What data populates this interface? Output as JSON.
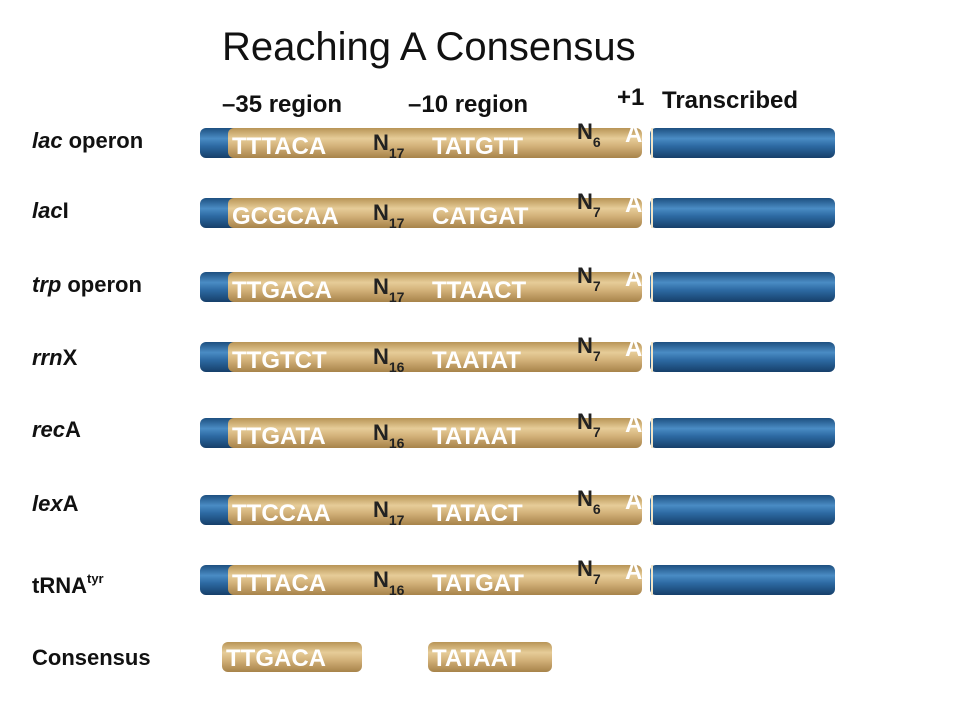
{
  "header": {
    "title": "Reaching A Consensus",
    "region35": "–35 region",
    "region10": "–10 region",
    "plus1": "+1",
    "transcribed": "Transcribed"
  },
  "rows": [
    {
      "gene": {
        "italic": "lac",
        "rest": "operon"
      },
      "box35": "TTTACA",
      "spacer1": {
        "letter": "N",
        "sub": "17"
      },
      "box10": "TATGTT",
      "spacer2": {
        "letter": "N",
        "sub": "6"
      },
      "start": "A"
    },
    {
      "gene": {
        "italic": "lac",
        "rest": "I"
      },
      "box35": "GCGCAA",
      "spacer1": {
        "letter": "N",
        "sub": "17"
      },
      "box10": "CATGAT",
      "spacer2": {
        "letter": "N",
        "sub": "7"
      },
      "start": "A"
    },
    {
      "gene": {
        "italic": "trp",
        "rest": "operon"
      },
      "box35": "TTGACA",
      "spacer1": {
        "letter": "N",
        "sub": "17"
      },
      "box10": "TTAACT",
      "spacer2": {
        "letter": "N",
        "sub": "7"
      },
      "start": "A"
    },
    {
      "gene": {
        "italic": "rrn",
        "rest": "X"
      },
      "box35": "TTGTCT",
      "spacer1": {
        "letter": "N",
        "sub": "16"
      },
      "box10": "TAATAT",
      "spacer2": {
        "letter": "N",
        "sub": "7"
      },
      "start": "A"
    },
    {
      "gene": {
        "italic": "rec",
        "rest": "A"
      },
      "box35": "TTGATA",
      "spacer1": {
        "letter": "N",
        "sub": "16"
      },
      "box10": "TATAAT",
      "spacer2": {
        "letter": "N",
        "sub": "7"
      },
      "start": "A"
    },
    {
      "gene": {
        "italic": "lex",
        "rest": "A"
      },
      "box35": "TTCCAA",
      "spacer1": {
        "letter": "N",
        "sub": "17"
      },
      "box10": "TATACT",
      "spacer2": {
        "letter": "N",
        "sub": "6"
      },
      "start": "A"
    },
    {
      "gene": {
        "text": "tRNA",
        "sup": "tyr"
      },
      "box35": "TTTACA",
      "spacer1": {
        "letter": "N",
        "sub": "16"
      },
      "box10": "TATGAT",
      "spacer2": {
        "letter": "N",
        "sub": "7"
      },
      "start": "A"
    }
  ],
  "consensus": {
    "label": "Consensus",
    "box35": "TTGACA",
    "box10": "TATAAT"
  }
}
